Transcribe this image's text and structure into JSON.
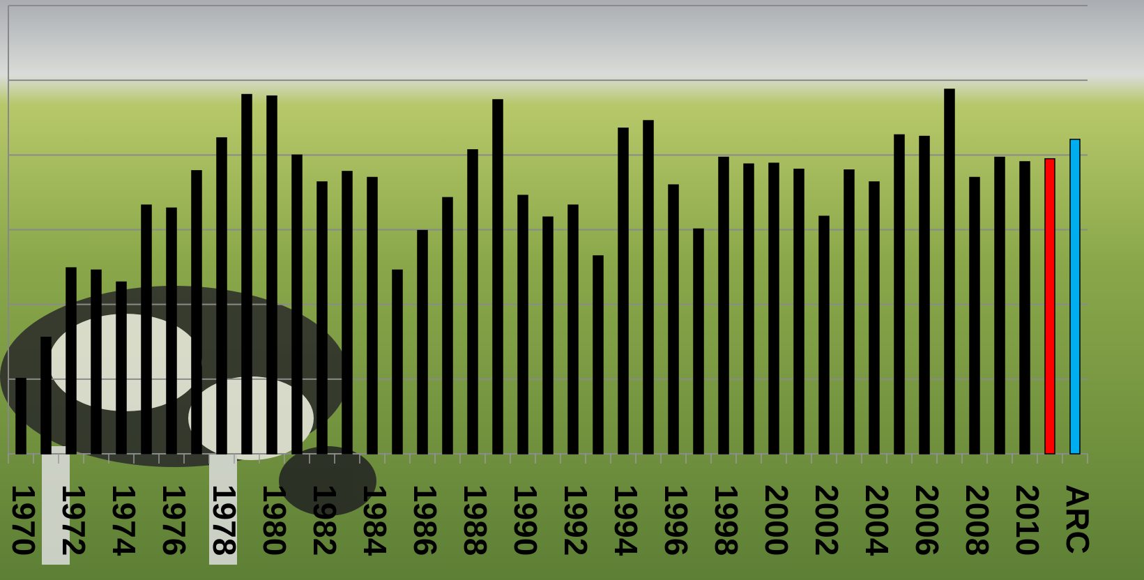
{
  "chart_data": {
    "type": "bar",
    "categories": [
      "1970",
      null,
      "1972",
      null,
      "1974",
      null,
      "1976",
      null,
      "1978",
      null,
      "1980",
      null,
      "1982",
      null,
      "1984",
      null,
      "1986",
      null,
      "1988",
      null,
      "1990",
      null,
      "1992",
      null,
      "1994",
      null,
      "1996",
      null,
      "1998",
      null,
      "2000",
      null,
      "2002",
      null,
      "2004",
      null,
      "2006",
      null,
      "2008",
      null,
      "2010",
      null,
      "ARC"
    ],
    "values": [
      1.01,
      1.56,
      2.49,
      2.46,
      2.3,
      3.33,
      3.29,
      3.79,
      4.23,
      4.81,
      4.79,
      4.0,
      3.64,
      3.78,
      3.7,
      2.46,
      2.99,
      3.43,
      4.07,
      4.74,
      3.46,
      3.17,
      3.33,
      2.65,
      4.36,
      4.46,
      3.6,
      3.01,
      3.97,
      3.88,
      3.89,
      3.81,
      3.18,
      3.8,
      3.64,
      4.27,
      4.25,
      4.88,
      3.7,
      3.97,
      3.91,
      3.95,
      4.21
    ],
    "colors": [
      "#000000",
      "#000000",
      "#000000",
      "#000000",
      "#000000",
      "#000000",
      "#000000",
      "#000000",
      "#000000",
      "#000000",
      "#000000",
      "#000000",
      "#000000",
      "#000000",
      "#000000",
      "#000000",
      "#000000",
      "#000000",
      "#000000",
      "#000000",
      "#000000",
      "#000000",
      "#000000",
      "#000000",
      "#000000",
      "#000000",
      "#000000",
      "#000000",
      "#000000",
      "#000000",
      "#000000",
      "#000000",
      "#000000",
      "#000000",
      "#000000",
      "#000000",
      "#000000",
      "#000000",
      "#000000",
      "#000000",
      "#000000",
      "#ff0000",
      "#00aeef"
    ],
    "ylim": [
      0,
      6
    ],
    "yticks": [
      0,
      1,
      2,
      3,
      4,
      5,
      6
    ],
    "grid": true
  }
}
